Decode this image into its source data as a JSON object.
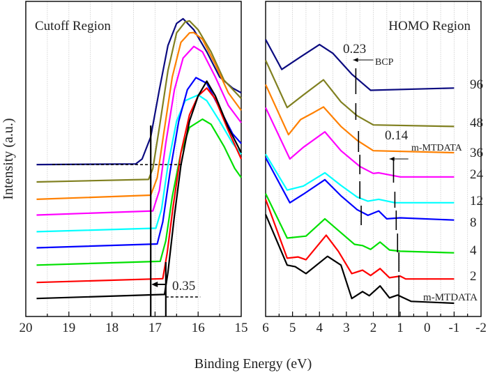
{
  "chart_data": [
    {
      "type": "line",
      "title": "Cutoff Region",
      "xlabel": "Binding Energy (eV)",
      "ylabel": "Intensity (a.u.)",
      "xlim": [
        20,
        15
      ],
      "x_ticks": [
        "20",
        "19",
        "18",
        "17",
        "16",
        "15"
      ],
      "x_tick_values": [
        20,
        19,
        18,
        17,
        16,
        15
      ],
      "ylim": [
        0,
        100
      ],
      "grid": "vertical",
      "series": [
        {
          "color": "#0b0b80",
          "points": [
            [
              19.75,
              48.2
            ],
            [
              17.45,
              48.4
            ],
            [
              17.3,
              50
            ],
            [
              17.1,
              57
            ],
            [
              16.9,
              72
            ],
            [
              16.7,
              86
            ],
            [
              16.5,
              93
            ],
            [
              16.35,
              94.5
            ],
            [
              16.1,
              91
            ],
            [
              15.8,
              84
            ],
            [
              15.5,
              76
            ],
            [
              15.2,
              72.5
            ],
            [
              15,
              71
            ]
          ]
        },
        {
          "color": "#808020",
          "points": [
            [
              19.75,
              42.7
            ],
            [
              17.15,
              43.5
            ],
            [
              17.05,
              47
            ],
            [
              16.9,
              60
            ],
            [
              16.7,
              78
            ],
            [
              16.5,
              90
            ],
            [
              16.3,
              93.5
            ],
            [
              16.2,
              93.8
            ],
            [
              16.0,
              91
            ],
            [
              15.7,
              84
            ],
            [
              15.4,
              75
            ],
            [
              15,
              69.2
            ]
          ]
        },
        {
          "color": "#ff8000",
          "points": [
            [
              19.75,
              37.2
            ],
            [
              17.1,
              38.5
            ],
            [
              16.95,
              44
            ],
            [
              16.8,
              58
            ],
            [
              16.6,
              76
            ],
            [
              16.4,
              87
            ],
            [
              16.2,
              90
            ],
            [
              16.1,
              90.1
            ],
            [
              15.9,
              88
            ],
            [
              15.6,
              80
            ],
            [
              15.3,
              71
            ],
            [
              15,
              65.4
            ]
          ]
        },
        {
          "color": "#ff00ff",
          "points": [
            [
              19.75,
              32.2
            ],
            [
              17.05,
              33.5
            ],
            [
              16.9,
              40
            ],
            [
              16.75,
              55
            ],
            [
              16.55,
              72
            ],
            [
              16.35,
              82
            ],
            [
              16.1,
              85.7
            ],
            [
              15.9,
              84
            ],
            [
              15.6,
              76
            ],
            [
              15.3,
              67
            ],
            [
              15,
              61.5
            ]
          ]
        },
        {
          "color": "#00ffff",
          "points": [
            [
              19.75,
              26.9
            ],
            [
              16.98,
              28
            ],
            [
              16.85,
              34
            ],
            [
              16.7,
              48
            ],
            [
              16.5,
              62
            ],
            [
              16.3,
              68.5
            ],
            [
              16.0,
              70.3
            ],
            [
              15.8,
              68.5
            ],
            [
              15.5,
              62
            ],
            [
              15.2,
              55
            ],
            [
              15,
              51.5
            ]
          ]
        },
        {
          "color": "#0000ff",
          "points": [
            [
              19.75,
              21.8
            ],
            [
              16.95,
              23
            ],
            [
              16.82,
              30
            ],
            [
              16.65,
              46
            ],
            [
              16.45,
              62
            ],
            [
              16.25,
              72
            ],
            [
              16.05,
              75.8
            ],
            [
              15.8,
              74
            ],
            [
              15.5,
              66
            ],
            [
              15.2,
              58
            ],
            [
              15,
              54.9
            ]
          ]
        },
        {
          "color": "#00e000",
          "points": [
            [
              19.75,
              16.3
            ],
            [
              16.88,
              17.5
            ],
            [
              16.75,
              24
            ],
            [
              16.6,
              38
            ],
            [
              16.4,
              52
            ],
            [
              16.2,
              60
            ],
            [
              15.9,
              62.6
            ],
            [
              15.7,
              61
            ],
            [
              15.4,
              54
            ],
            [
              15.15,
              47
            ],
            [
              15,
              44.1
            ]
          ]
        },
        {
          "color": "#ff0000",
          "points": [
            [
              19.75,
              10.8
            ],
            [
              16.82,
              12
            ],
            [
              16.72,
              20
            ],
            [
              16.58,
              35
            ],
            [
              16.4,
              52
            ],
            [
              16.2,
              64
            ],
            [
              16.0,
              70
            ],
            [
              15.8,
              72.5
            ],
            [
              15.6,
              69
            ],
            [
              15.3,
              59
            ],
            [
              15,
              50
            ]
          ]
        },
        {
          "color": "#000000",
          "points": [
            [
              19.75,
              5.7
            ],
            [
              16.78,
              7
            ],
            [
              16.7,
              14
            ],
            [
              16.55,
              32
            ],
            [
              16.4,
              48
            ],
            [
              16.2,
              62
            ],
            [
              16.0,
              70
            ],
            [
              15.8,
              74.7
            ],
            [
              15.6,
              70
            ],
            [
              15.3,
              60
            ],
            [
              15,
              52
            ]
          ]
        }
      ],
      "cutoff_lines": [
        17.1,
        16.75
      ],
      "annotation": "0.35"
    },
    {
      "type": "line",
      "title": "HOMO Region",
      "xlim": [
        6,
        -2
      ],
      "x_ticks": [
        "6",
        "5",
        "4",
        "3",
        "2",
        "1",
        "0",
        "-1",
        "-2"
      ],
      "x_tick_values": [
        6,
        5,
        4,
        3,
        2,
        1,
        0,
        -1,
        -2
      ],
      "ylim": [
        0,
        100
      ],
      "grid": "vertical",
      "series": [
        {
          "name": "96",
          "color": "#0b0b80",
          "points": [
            [
              6,
              87.9
            ],
            [
              5.4,
              78.4
            ],
            [
              4.7,
              82.4
            ],
            [
              4.0,
              86.3
            ],
            [
              3.5,
              83.5
            ],
            [
              2.8,
              76.9
            ],
            [
              2.1,
              71.8
            ],
            [
              -1,
              72.5
            ]
          ]
        },
        {
          "name": "48",
          "color": "#808020",
          "points": [
            [
              6,
              81.3
            ],
            [
              5.2,
              66.3
            ],
            [
              4.6,
              70.3
            ],
            [
              3.85,
              75.1
            ],
            [
              3.2,
              68.1
            ],
            [
              2.6,
              63.7
            ],
            [
              2.0,
              60.8
            ],
            [
              -1,
              60.3
            ]
          ]
        },
        {
          "name": "36",
          "color": "#ff8000",
          "points": [
            [
              6,
              73.6
            ],
            [
              5.15,
              57.7
            ],
            [
              4.7,
              62.5
            ],
            [
              4.2,
              64.8
            ],
            [
              3.85,
              66.5
            ],
            [
              3.2,
              60.3
            ],
            [
              2.6,
              55.9
            ],
            [
              2.0,
              52.6
            ],
            [
              -1,
              52.0
            ]
          ]
        },
        {
          "name": "24",
          "color": "#ff00ff",
          "points": [
            [
              6,
              66.3
            ],
            [
              5.1,
              50.0
            ],
            [
              4.6,
              53.7
            ],
            [
              3.8,
              58.6
            ],
            [
              3.2,
              52.6
            ],
            [
              2.5,
              47.6
            ],
            [
              2.0,
              45.4
            ],
            [
              1.8,
              45.6
            ],
            [
              1.0,
              44.3
            ],
            [
              -1,
              44.3
            ]
          ]
        },
        {
          "name": "12",
          "color": "#00ffff",
          "points": [
            [
              6,
              51.5
            ],
            [
              5.2,
              40.1
            ],
            [
              4.6,
              41.4
            ],
            [
              3.8,
              45.6
            ],
            [
              3.2,
              41.6
            ],
            [
              2.6,
              37.9
            ],
            [
              2.2,
              36.6
            ],
            [
              1.8,
              37.2
            ],
            [
              1.2,
              36.1
            ],
            [
              -1,
              36.1
            ]
          ]
        },
        {
          "name": "8",
          "color": "#0000ff",
          "points": [
            [
              6,
              50.4
            ],
            [
              5.1,
              36.1
            ],
            [
              4.6,
              38.8
            ],
            [
              3.8,
              43.4
            ],
            [
              3.2,
              38.3
            ],
            [
              2.6,
              33.9
            ],
            [
              2.2,
              32.1
            ],
            [
              1.8,
              33.5
            ],
            [
              1.5,
              31.0
            ],
            [
              1.0,
              31.3
            ],
            [
              -1,
              30.6
            ]
          ]
        },
        {
          "name": "4",
          "color": "#00e000",
          "points": [
            [
              6,
              39.0
            ],
            [
              5.2,
              24.9
            ],
            [
              4.5,
              25.5
            ],
            [
              3.8,
              31.0
            ],
            [
              3.3,
              27.3
            ],
            [
              2.7,
              22.9
            ],
            [
              2.4,
              22.5
            ],
            [
              2.1,
              21.3
            ],
            [
              1.75,
              23.6
            ],
            [
              1.4,
              21.1
            ],
            [
              1.0,
              20.7
            ],
            [
              -1,
              20.2
            ]
          ]
        },
        {
          "name": "2",
          "color": "#ff0000",
          "points": [
            [
              6,
              37.2
            ],
            [
              5.2,
              18.5
            ],
            [
              4.8,
              18.9
            ],
            [
              4.5,
              18.0
            ],
            [
              3.75,
              25.8
            ],
            [
              3.3,
              20.7
            ],
            [
              2.8,
              13.6
            ],
            [
              2.4,
              14.7
            ],
            [
              2.1,
              13.0
            ],
            [
              1.75,
              15.2
            ],
            [
              1.4,
              12.3
            ],
            [
              1.0,
              12.8
            ],
            [
              0.8,
              11.9
            ],
            [
              -1,
              11.9
            ]
          ]
        },
        {
          "name": "m-MTDATA",
          "color": "#000000",
          "points": [
            [
              6,
              32.4
            ],
            [
              5.2,
              16.3
            ],
            [
              4.9,
              15.8
            ],
            [
              4.5,
              13.6
            ],
            [
              3.7,
              19.1
            ],
            [
              3.2,
              16.3
            ],
            [
              2.8,
              5.7
            ],
            [
              2.4,
              7.9
            ],
            [
              2.15,
              6.6
            ],
            [
              1.75,
              9.7
            ],
            [
              1.4,
              5.9
            ],
            [
              1.1,
              6.8
            ],
            [
              0.6,
              4.8
            ],
            [
              -1,
              4.2
            ]
          ]
        }
      ],
      "annotations": [
        {
          "text": "0.23",
          "sub": "BCP"
        },
        {
          "text": "0.14",
          "sub": "m-MTDATA"
        }
      ]
    }
  ]
}
